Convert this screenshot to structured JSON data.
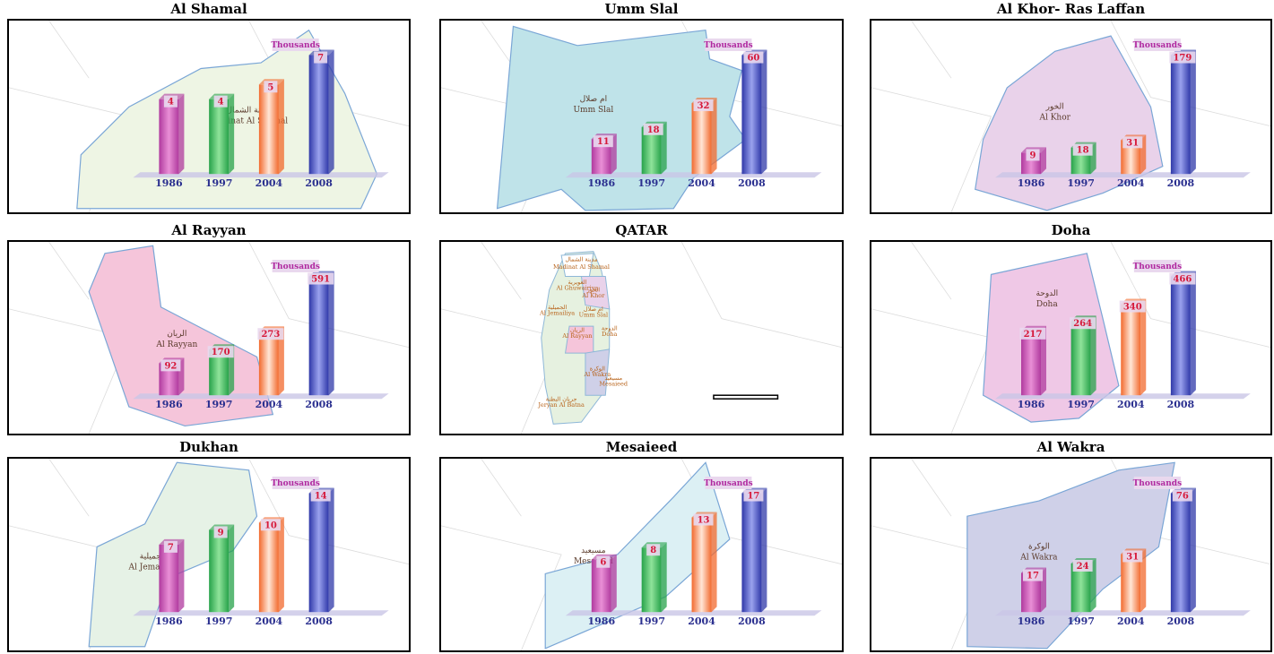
{
  "chart_data": [
    {
      "type": "bar",
      "title": "Al Shamal",
      "unit": "Thousands",
      "categories": [
        "1986",
        "1997",
        "2004",
        "2008"
      ],
      "values": [
        4,
        4,
        5,
        7
      ],
      "map_labels": [
        "مدينة الشمال",
        "Madinat Al Shamal"
      ]
    },
    {
      "type": "bar",
      "title": "Umm Slal",
      "unit": "Thousands",
      "categories": [
        "1986",
        "1997",
        "2004",
        "2008"
      ],
      "values": [
        11,
        18,
        32,
        60
      ],
      "map_labels": [
        "ام صلال",
        "Umm Slal"
      ]
    },
    {
      "type": "bar",
      "title": "Al Khor- Ras Laffan",
      "unit": "Thousands",
      "categories": [
        "1986",
        "1997",
        "2004",
        "2008"
      ],
      "values": [
        9,
        18,
        31,
        179
      ],
      "map_labels": [
        "الخور",
        "Al Khor"
      ]
    },
    {
      "type": "bar",
      "title": "Al Rayyan",
      "unit": "Thousands",
      "categories": [
        "1986",
        "1997",
        "2004",
        "2008"
      ],
      "values": [
        92,
        170,
        273,
        591
      ],
      "map_labels": [
        "الريان",
        "Al Rayyan"
      ]
    },
    {
      "type": "map",
      "title": "QATAR",
      "map_labels": [
        "مدينة الشمال",
        "Madinat Al Shamal",
        "الغويرية",
        "Al Ghuwairiya",
        "الخور",
        "Al Khor",
        "الجميلية",
        "Al Jemailiya",
        "ام صلال",
        "Umm Slal",
        "الريان",
        "Al Rayyan",
        "الدوحة",
        "Doha",
        "الوكرة",
        "Al Wakra",
        "مسيعيد",
        "Mesaieed",
        "جريان البطنة",
        "Jeryan Al Batna"
      ]
    },
    {
      "type": "bar",
      "title": "Doha",
      "unit": "Thousands",
      "categories": [
        "1986",
        "1997",
        "2004",
        "2008"
      ],
      "values": [
        217,
        264,
        340,
        466
      ],
      "map_labels": [
        "الدوحة",
        "Doha"
      ]
    },
    {
      "type": "bar",
      "title": "Dukhan",
      "unit": "Thousands",
      "categories": [
        "1986",
        "1997",
        "2004",
        "2008"
      ],
      "values": [
        7,
        9,
        10,
        14
      ],
      "map_labels": [
        "الجميلية",
        "Al Jemailiya"
      ]
    },
    {
      "type": "bar",
      "title": "Mesaieed",
      "unit": "Thousands",
      "categories": [
        "1986",
        "1997",
        "2004",
        "2008"
      ],
      "values": [
        6,
        8,
        13,
        17
      ],
      "map_labels": [
        "مسيعيد",
        "Mesaieed"
      ]
    },
    {
      "type": "bar",
      "title": "Al Wakra",
      "unit": "Thousands",
      "categories": [
        "1986",
        "1997",
        "2004",
        "2008"
      ],
      "values": [
        17,
        24,
        31,
        76
      ],
      "map_labels": [
        "الوكرة",
        "Al Wakra"
      ]
    }
  ],
  "colors": {
    "bars": [
      "#b03a9e",
      "#27a24a",
      "#f26a2e",
      "#2f38a8"
    ],
    "bar_light": [
      "#e98fd6",
      "#8fe39a",
      "#ffe6d6",
      "#9aa2ee"
    ],
    "value_text": "#d6183a",
    "year_text": "#2a2f8f",
    "unit_text": "#b02aa0",
    "label_bg": "#e9d8ee",
    "region_fills": [
      "#eef5e4",
      "#bfe3e9",
      "#e9d2ea",
      "#f5c5da",
      "#ffffff",
      "#efc8e6",
      "#e6f2e6",
      "#dcf0f4",
      "#cfd0e8"
    ]
  }
}
